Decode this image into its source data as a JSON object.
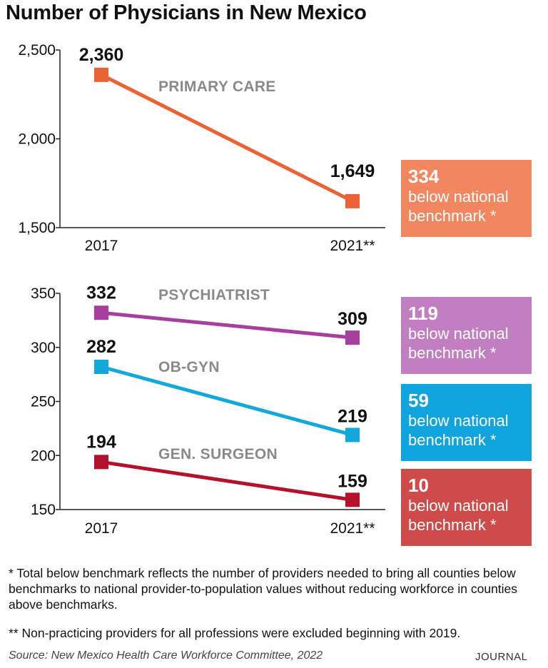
{
  "title": "Number of Physicians in New Mexico",
  "chart_data": [
    {
      "type": "line",
      "categories": [
        "2017",
        "2021**"
      ],
      "ylim": [
        1500,
        2500
      ],
      "yticks": [
        "1,500",
        "2,000",
        "2,500"
      ],
      "ytick_values": [
        1500,
        2000,
        2500
      ],
      "series": [
        {
          "name": "PRIMARY CARE",
          "values": [
            2360,
            1649
          ],
          "labels": [
            "2,360",
            "1,649"
          ],
          "color": "#ec6234"
        }
      ]
    },
    {
      "type": "line",
      "categories": [
        "2017",
        "2021**"
      ],
      "ylim": [
        150,
        350
      ],
      "yticks": [
        "150",
        "200",
        "250",
        "300",
        "350"
      ],
      "ytick_values": [
        150,
        200,
        250,
        300,
        350
      ],
      "series": [
        {
          "name": "PSYCHIATRIST",
          "values": [
            332,
            309
          ],
          "labels": [
            "332",
            "309"
          ],
          "color": "#a63f9e"
        },
        {
          "name": "OB-GYN",
          "values": [
            282,
            219
          ],
          "labels": [
            "282",
            "219"
          ],
          "color": "#13a8dc"
        },
        {
          "name": "GEN. SURGEON",
          "values": [
            194,
            159
          ],
          "labels": [
            "194",
            "159"
          ],
          "color": "#b5112c"
        }
      ]
    }
  ],
  "benchmarks": [
    {
      "number": "334",
      "text": "below national benchmark *",
      "line1": "below national",
      "line2": "benchmark *",
      "color": "#f2875f"
    },
    {
      "number": "119",
      "text": "below national benchmark *",
      "line1": "below national",
      "line2": "benchmark *",
      "color": "#c17ec0"
    },
    {
      "number": "59",
      "text": "below national benchmark *",
      "line1": "below national",
      "line2": "benchmark *",
      "color": "#0fa4de"
    },
    {
      "number": "10",
      "text": "below national benchmark *",
      "line1": "below national",
      "line2": "benchmark *",
      "color": "#cf4b4a"
    }
  ],
  "notes": {
    "note1": "* Total below benchmark reflects the number of providers needed to bring all counties below benchmarks to national provider-to-population values without reducing workforce in counties above benchmarks.",
    "note2": "** Non-practicing providers for all professions were excluded beginning with 2019.",
    "source": "Source: New Mexico Health Care Workforce Committee, 2022",
    "brand": "JOURNAL"
  }
}
